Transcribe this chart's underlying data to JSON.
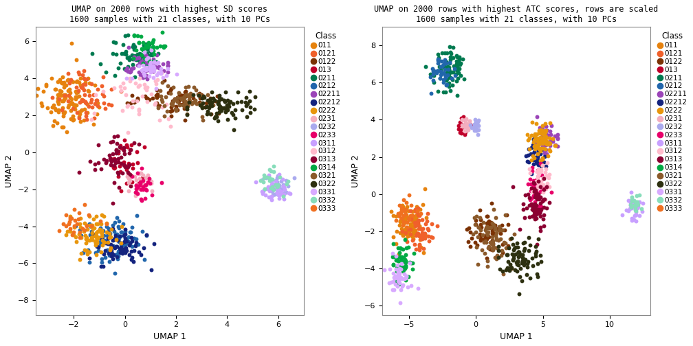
{
  "title1": "UMAP on 2000 rows with highest SD scores\n1600 samples with 21 classes, with 10 PCs",
  "title2": "UMAP on 2000 rows with highest ATC scores, rows are scaled\n1600 samples with 21 classes, with 10 PCs",
  "xlabel": "UMAP 1",
  "ylabel": "UMAP 2",
  "legend_title": "Class",
  "classes": [
    "011",
    "0121",
    "0122",
    "013",
    "0211",
    "0212",
    "02211",
    "02212",
    "0222",
    "0231",
    "0232",
    "0233",
    "0311",
    "0312",
    "0313",
    "0314",
    "0321",
    "0322",
    "0331",
    "0332",
    "0333"
  ],
  "colors": [
    "#E6820E",
    "#F0602B",
    "#7B3204",
    "#C0002A",
    "#007A50",
    "#2166AC",
    "#9B44B8",
    "#14237E",
    "#E8960C",
    "#F4AEBE",
    "#AAAAEE",
    "#E8006A",
    "#C8A0FF",
    "#FFBBCC",
    "#8B0032",
    "#00AA44",
    "#8B5A2B",
    "#2D3010",
    "#D8AAFF",
    "#88DDBB",
    "#F07020"
  ],
  "xlim1": [
    -3.5,
    7
  ],
  "ylim1": [
    -8.8,
    6.8
  ],
  "xlim2": [
    -7,
    13
  ],
  "ylim2": [
    -6.5,
    9
  ],
  "xticks1": [
    -2,
    0,
    2,
    4,
    6
  ],
  "yticks1": [
    -8,
    -6,
    -4,
    -2,
    0,
    2,
    4,
    6
  ],
  "xticks2": [
    -5,
    0,
    5,
    10
  ],
  "yticks2": [
    -6,
    -4,
    -2,
    0,
    2,
    4,
    6,
    8
  ],
  "background_color": "#FFFFFF",
  "panel_bg": "#FFFFFF",
  "point_size": 18
}
